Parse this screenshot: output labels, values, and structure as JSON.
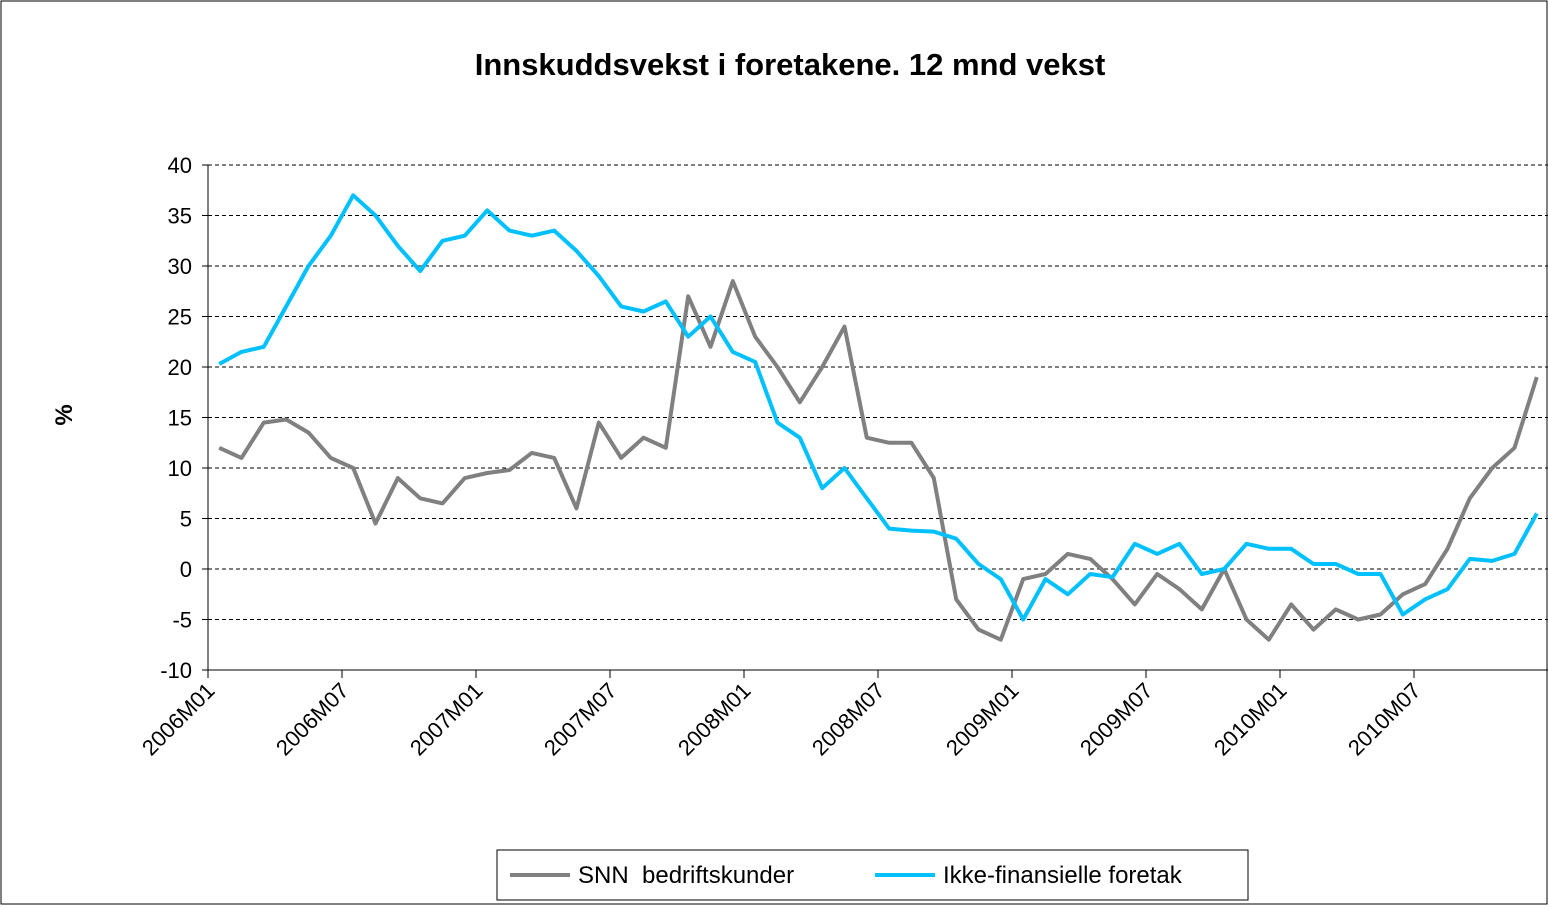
{
  "chart_data": {
    "type": "line",
    "title": "Innskuddsvekst i foretakene. 12 mnd vekst",
    "y_label": "%",
    "categories": [
      "2006M01",
      null,
      null,
      null,
      null,
      null,
      "2006M07",
      null,
      null,
      null,
      null,
      null,
      "2007M01",
      null,
      null,
      null,
      null,
      null,
      "2007M07",
      null,
      null,
      null,
      null,
      null,
      "2008M01",
      null,
      null,
      null,
      null,
      null,
      "2008M07",
      null,
      null,
      null,
      null,
      null,
      "2009M01",
      null,
      null,
      null,
      null,
      null,
      "2009M07",
      null,
      null,
      null,
      null,
      null,
      "2010M01",
      null,
      null,
      null,
      null,
      null,
      "2010M07",
      null,
      null,
      null,
      null,
      null
    ],
    "series": [
      {
        "name": "SNN  bedriftskunder",
        "color": "#808080",
        "values": [
          12,
          11,
          14.5,
          14.8,
          13.5,
          11,
          10,
          4.5,
          9,
          7,
          6.5,
          9,
          9.5,
          9.8,
          11.5,
          11,
          6,
          14.5,
          11,
          13,
          12,
          27,
          22,
          28.5,
          23,
          20,
          16.5,
          20,
          24,
          13,
          12.5,
          12.5,
          9,
          -3,
          -6,
          -7,
          -1,
          -0.5,
          1.5,
          1,
          -1,
          -3.5,
          -0.5,
          -2,
          -4,
          0,
          -5,
          -7,
          -3.5,
          -6,
          -4,
          -5,
          -4.5,
          -2.5,
          -1.5,
          2,
          7,
          10,
          12,
          19
        ]
      },
      {
        "name": "Ikke-finansielle foretak",
        "color": "#00c0ff",
        "values": [
          20.3,
          21.5,
          22,
          26,
          30,
          33,
          37,
          35,
          32,
          29.5,
          32.5,
          33,
          35.5,
          33.5,
          33,
          33.5,
          31.5,
          29,
          26,
          25.5,
          26.5,
          23,
          25,
          21.5,
          20.5,
          14.5,
          13,
          8,
          10,
          7,
          4,
          3.8,
          3.7,
          3,
          0.5,
          -1,
          -5,
          -1,
          -2.5,
          -0.5,
          -0.8,
          2.5,
          1.5,
          2.5,
          -0.5,
          0,
          2.5,
          2,
          2,
          0.5,
          0.5,
          -0.5,
          -0.5,
          -4.5,
          -3,
          -2,
          1,
          0.8,
          1.5,
          5.5
        ]
      }
    ],
    "ylim": [
      -10,
      40
    ],
    "yticks": [
      -10,
      -5,
      0,
      5,
      10,
      15,
      20,
      25,
      30,
      35,
      40
    ],
    "grid": true
  }
}
